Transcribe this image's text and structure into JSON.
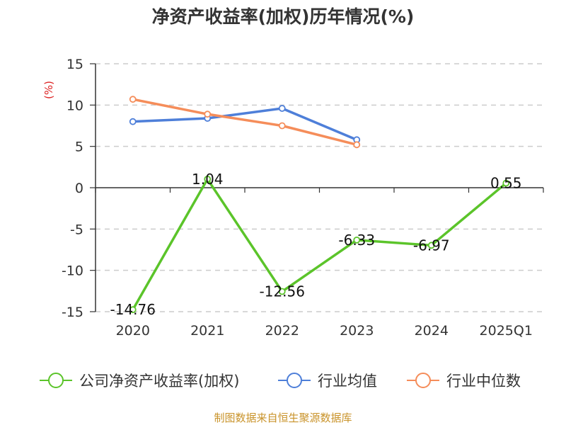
{
  "chart_data": {
    "type": "line",
    "title": "净资产收益率(加权)历年情况(%)",
    "ylabel": "(%)",
    "ylim": [
      -15,
      15
    ],
    "yticks": [
      15,
      10,
      5,
      0,
      -5,
      -10,
      -15
    ],
    "grid": true,
    "legend_position": "bottom",
    "categories": [
      "2020",
      "2021",
      "2022",
      "2023",
      "2024",
      "2025Q1"
    ],
    "series": [
      {
        "name": "公司净资产收益率(加权)",
        "color": "#5bc42a",
        "values": [
          -14.76,
          1.04,
          -12.56,
          -6.33,
          -6.97,
          0.55
        ],
        "labels": [
          "-14.76",
          "1.04",
          "-12.56",
          "-6.33",
          "-6.97",
          "0.55"
        ]
      },
      {
        "name": "行业均值",
        "color": "#4e7fd9",
        "values": [
          8.0,
          8.4,
          9.6,
          5.8,
          null,
          null
        ]
      },
      {
        "name": "行业中位数",
        "color": "#f58d5a",
        "values": [
          10.7,
          8.9,
          7.5,
          5.2,
          null,
          null
        ]
      }
    ]
  },
  "source_text": "制图数据来自恒生聚源数据库",
  "colors": {
    "unit_label": "#dd2222",
    "source_text": "#c9932a",
    "grid": "#cccccc",
    "axis": "#333333"
  }
}
